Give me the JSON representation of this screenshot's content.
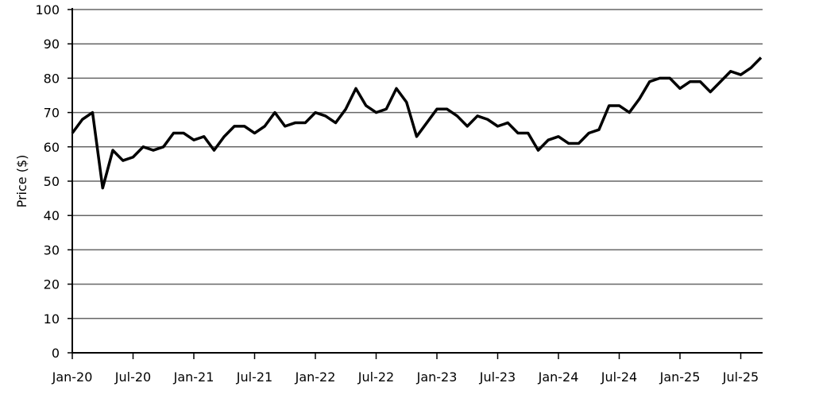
{
  "chart_data": {
    "type": "line",
    "ylabel": "Price ($)",
    "categories": [
      "Jan-20",
      null,
      null,
      null,
      null,
      null,
      "Jul-20",
      null,
      null,
      null,
      null,
      null,
      "Jan-21",
      null,
      null,
      null,
      null,
      null,
      "Jul-21",
      null,
      null,
      null,
      null,
      null,
      "Jan-22",
      null,
      null,
      null,
      null,
      null,
      "Jul-22",
      null,
      null,
      null,
      null,
      null,
      "Jan-23",
      null,
      null,
      null,
      null,
      null,
      "Jul-23",
      null,
      null,
      null,
      null,
      null,
      "Jan-24",
      null,
      null,
      null,
      null,
      null,
      "Jul-24",
      null,
      null,
      null,
      null,
      null,
      "Jan-25",
      null,
      null,
      null,
      null,
      null,
      "Jul-25",
      null,
      null
    ],
    "values": [
      64,
      68,
      70,
      48,
      59,
      56,
      57,
      60,
      59,
      60,
      64,
      64,
      62,
      63,
      59,
      63,
      66,
      66,
      64,
      66,
      70,
      66,
      67,
      67,
      70,
      69,
      67,
      71,
      77,
      72,
      70,
      71,
      77,
      73,
      63,
      67,
      71,
      71,
      69,
      66,
      69,
      68,
      66,
      67,
      64,
      64,
      59,
      62,
      63,
      61,
      61,
      64,
      65,
      72,
      72,
      70,
      74,
      79,
      80,
      80,
      77,
      79,
      79,
      76,
      79,
      82,
      81,
      83,
      86
    ],
    "color": "#000000",
    "ylim": [
      0,
      100
    ],
    "yticks": [
      0,
      10,
      20,
      30,
      40,
      50,
      60,
      70,
      80,
      90,
      100
    ],
    "grid": true
  }
}
